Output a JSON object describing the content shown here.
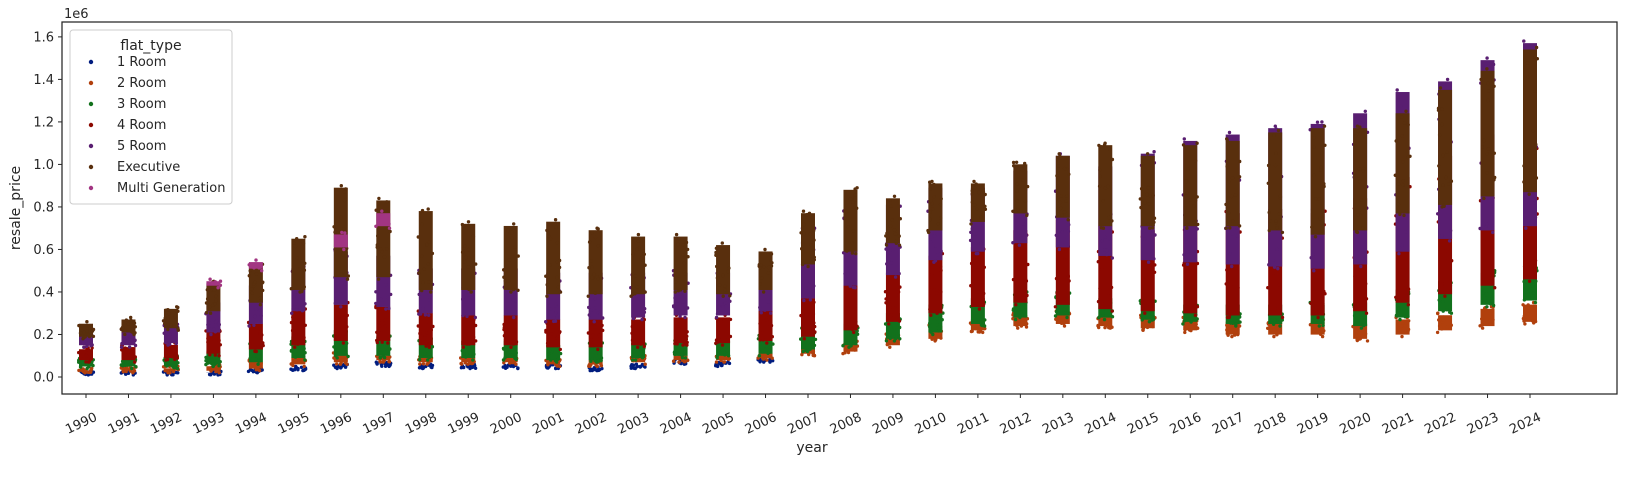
{
  "chart_data": {
    "type": "scatter",
    "subtype": "strip",
    "xlabel": "year",
    "ylabel": "resale_price",
    "y_offset_label": "1e6",
    "ylim": [
      -0.08,
      1.67
    ],
    "yticks": [
      0.0,
      0.2,
      0.4,
      0.6,
      0.8,
      1.0,
      1.2,
      1.4,
      1.6
    ],
    "ytick_labels": [
      "0.0",
      "0.2",
      "0.4",
      "0.6",
      "0.8",
      "1.0",
      "1.2",
      "1.4",
      "1.6"
    ],
    "categories": [
      "1990",
      "1991",
      "1992",
      "1993",
      "1994",
      "1995",
      "1996",
      "1997",
      "1998",
      "1999",
      "2000",
      "2001",
      "2002",
      "2003",
      "2004",
      "2005",
      "2006",
      "2007",
      "2008",
      "2009",
      "2010",
      "2011",
      "2012",
      "2013",
      "2014",
      "2015",
      "2016",
      "2017",
      "2018",
      "2019",
      "2020",
      "2021",
      "2022",
      "2023",
      "2024"
    ],
    "grid": false,
    "legend": {
      "title": "flat_type",
      "position": "top-left",
      "entries": [
        "1 Room",
        "2 Room",
        "3 Room",
        "4 Room",
        "5 Room",
        "Executive",
        "Multi Generation"
      ]
    },
    "colors": [
      "#001c7f",
      "#b1400d",
      "#12711c",
      "#8c0800",
      "#591e71",
      "#592f0d",
      "#a23582"
    ],
    "series": [
      {
        "name": "1 Room",
        "min": [
          0.01,
          0.01,
          0.01,
          0.01,
          0.02,
          0.03,
          0.04,
          0.05,
          0.04,
          0.04,
          0.04,
          0.04,
          0.03,
          0.04,
          0.06,
          0.05,
          0.07,
          null,
          null,
          null,
          null,
          null,
          null,
          null,
          null,
          null,
          null,
          null,
          null,
          null,
          null,
          null,
          null,
          null,
          null
        ],
        "max": [
          0.03,
          0.03,
          0.03,
          0.03,
          0.04,
          0.05,
          0.06,
          0.07,
          0.06,
          0.06,
          0.06,
          0.06,
          0.05,
          0.06,
          0.08,
          0.07,
          0.09,
          null,
          null,
          null,
          null,
          null,
          null,
          null,
          null,
          null,
          null,
          null,
          null,
          null,
          null,
          null,
          null,
          null,
          null
        ]
      },
      {
        "name": "2 Room",
        "min": [
          0.02,
          0.02,
          0.02,
          0.02,
          0.03,
          0.05,
          0.06,
          0.07,
          0.06,
          0.06,
          0.06,
          0.05,
          0.05,
          0.06,
          0.07,
          0.07,
          0.08,
          0.1,
          0.11,
          0.14,
          0.17,
          0.21,
          0.23,
          0.24,
          0.23,
          0.22,
          0.21,
          0.19,
          0.19,
          0.19,
          0.17,
          0.19,
          0.21,
          0.23,
          0.25
        ],
        "max": [
          0.04,
          0.05,
          0.05,
          0.06,
          0.08,
          0.1,
          0.12,
          0.11,
          0.1,
          0.1,
          0.1,
          0.09,
          0.09,
          0.1,
          0.11,
          0.11,
          0.12,
          0.15,
          0.17,
          0.21,
          0.25,
          0.28,
          0.3,
          0.31,
          0.3,
          0.29,
          0.28,
          0.27,
          0.27,
          0.27,
          0.26,
          0.28,
          0.3,
          0.33,
          0.35
        ]
      },
      {
        "name": "3 Room",
        "min": [
          0.04,
          0.04,
          0.04,
          0.05,
          0.06,
          0.08,
          0.09,
          0.09,
          0.08,
          0.08,
          0.08,
          0.07,
          0.07,
          0.08,
          0.09,
          0.09,
          0.1,
          0.12,
          0.14,
          0.17,
          0.2,
          0.24,
          0.27,
          0.28,
          0.27,
          0.26,
          0.25,
          0.24,
          0.24,
          0.24,
          0.23,
          0.27,
          0.3,
          0.33,
          0.35
        ],
        "max": [
          0.09,
          0.09,
          0.1,
          0.13,
          0.16,
          0.2,
          0.23,
          0.2,
          0.19,
          0.18,
          0.18,
          0.16,
          0.16,
          0.17,
          0.18,
          0.18,
          0.2,
          0.23,
          0.26,
          0.31,
          0.35,
          0.38,
          0.4,
          0.4,
          0.38,
          0.36,
          0.35,
          0.35,
          0.35,
          0.35,
          0.36,
          0.42,
          0.46,
          0.5,
          0.52
        ]
      },
      {
        "name": "4 Room",
        "min": [
          0.07,
          0.07,
          0.08,
          0.1,
          0.12,
          0.14,
          0.16,
          0.16,
          0.14,
          0.14,
          0.14,
          0.13,
          0.13,
          0.14,
          0.15,
          0.15,
          0.16,
          0.18,
          0.21,
          0.25,
          0.29,
          0.32,
          0.34,
          0.33,
          0.31,
          0.3,
          0.29,
          0.28,
          0.28,
          0.28,
          0.3,
          0.34,
          0.38,
          0.42,
          0.45
        ],
        "max": [
          0.14,
          0.15,
          0.16,
          0.22,
          0.26,
          0.32,
          0.35,
          0.34,
          0.31,
          0.3,
          0.3,
          0.28,
          0.28,
          0.28,
          0.29,
          0.29,
          0.32,
          0.38,
          0.44,
          0.5,
          0.58,
          0.62,
          0.7,
          0.75,
          0.72,
          0.7,
          0.72,
          0.78,
          0.8,
          0.78,
          0.85,
          0.95,
          1.05,
          1.15,
          1.2
        ]
      },
      {
        "name": "5 Room",
        "min": [
          0.14,
          0.14,
          0.15,
          0.2,
          0.24,
          0.3,
          0.33,
          0.32,
          0.29,
          0.28,
          0.28,
          0.26,
          0.26,
          0.27,
          0.28,
          0.28,
          0.3,
          0.36,
          0.42,
          0.47,
          0.54,
          0.58,
          0.62,
          0.6,
          0.56,
          0.54,
          0.53,
          0.52,
          0.51,
          0.5,
          0.52,
          0.58,
          0.64,
          0.68,
          0.7
        ],
        "max": [
          0.21,
          0.23,
          0.25,
          0.36,
          0.44,
          0.52,
          0.6,
          0.58,
          0.52,
          0.52,
          0.52,
          0.5,
          0.5,
          0.5,
          0.5,
          0.5,
          0.52,
          0.7,
          0.8,
          0.82,
          0.9,
          0.9,
          0.98,
          1.05,
          1.0,
          1.06,
          1.12,
          1.15,
          1.18,
          1.2,
          1.25,
          1.35,
          1.4,
          1.5,
          1.58
        ]
      },
      {
        "name": "Executive",
        "min": [
          0.18,
          0.2,
          0.22,
          0.3,
          0.34,
          0.4,
          0.46,
          0.46,
          0.4,
          0.4,
          0.4,
          0.38,
          0.38,
          0.38,
          0.4,
          0.38,
          0.4,
          0.52,
          0.58,
          0.62,
          0.68,
          0.72,
          0.76,
          0.74,
          0.7,
          0.7,
          0.7,
          0.7,
          0.68,
          0.66,
          0.68,
          0.76,
          0.8,
          0.84,
          0.86
        ],
        "max": [
          0.26,
          0.28,
          0.33,
          0.45,
          0.53,
          0.66,
          0.9,
          0.84,
          0.79,
          0.73,
          0.72,
          0.74,
          0.7,
          0.67,
          0.67,
          0.63,
          0.6,
          0.78,
          0.89,
          0.85,
          0.92,
          0.92,
          1.01,
          1.05,
          1.1,
          1.05,
          1.1,
          1.12,
          1.16,
          1.18,
          1.18,
          1.25,
          1.36,
          1.45,
          1.55
        ]
      },
      {
        "name": "Multi Generation",
        "min": [
          null,
          null,
          null,
          0.42,
          0.5,
          null,
          0.6,
          0.7,
          null,
          null,
          null,
          null,
          null,
          null,
          null,
          null,
          null,
          null,
          null,
          null,
          null,
          null,
          null,
          null,
          null,
          null,
          null,
          null,
          null,
          null,
          null,
          null,
          null,
          null,
          null
        ],
        "max": [
          null,
          null,
          null,
          0.46,
          0.55,
          null,
          0.68,
          0.78,
          null,
          null,
          null,
          null,
          null,
          null,
          null,
          null,
          null,
          null,
          null,
          null,
          null,
          null,
          null,
          null,
          null,
          null,
          null,
          null,
          null,
          null,
          null,
          null,
          null,
          null,
          null
        ]
      }
    ]
  }
}
